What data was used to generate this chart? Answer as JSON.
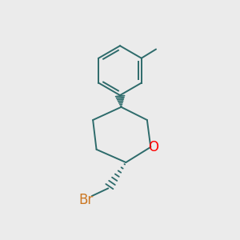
{
  "background_color": "#ebebeb",
  "bond_color": "#2d6b6b",
  "O_color": "#ff0000",
  "Br_color": "#cc7722",
  "line_width": 1.4,
  "figsize": [
    3.0,
    3.0
  ],
  "dpi": 100
}
